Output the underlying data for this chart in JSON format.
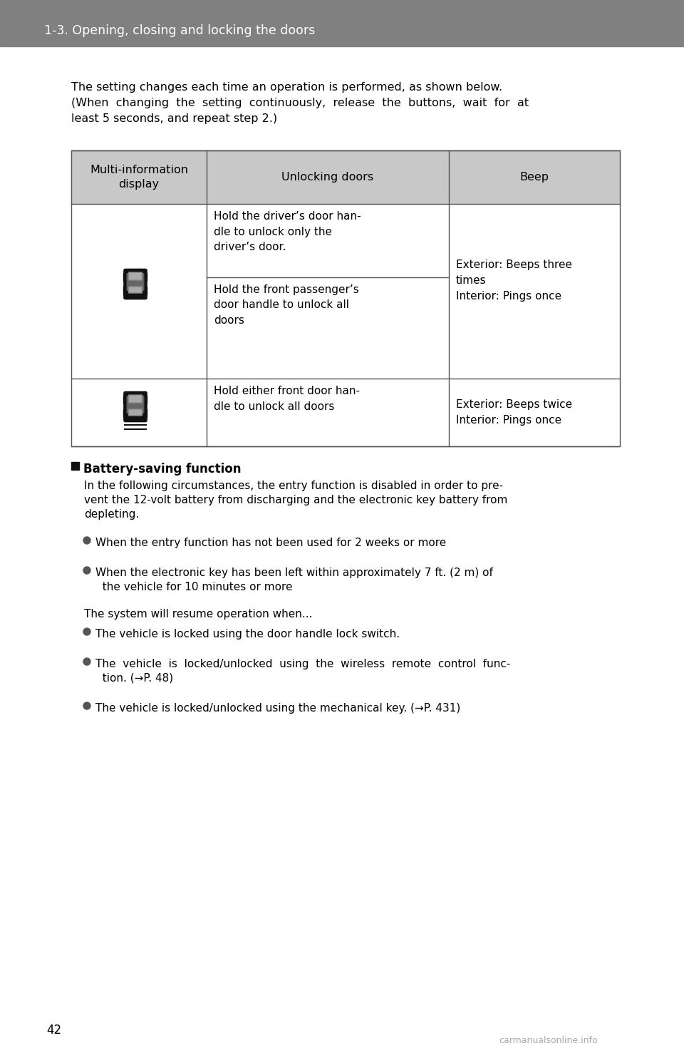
{
  "header_bg": "#808080",
  "header_text_color": "#ffffff",
  "header_title": "1-3. Opening, closing and locking the doors",
  "page_bg": "#ffffff",
  "page_number": "42",
  "intro_line1": "The setting changes each time an operation is performed, as shown below.",
  "intro_line2": "(When  changing  the  setting  continuously,  release  the  buttons,  wait  for  at",
  "intro_line3": "least 5 seconds, and repeat step 2.)",
  "table_header_bg": "#c8c8c8",
  "table_border_color": "#555555",
  "col_header0": "Multi-information\ndisplay",
  "col_header1": "Unlocking doors",
  "col_header2": "Beep",
  "row1_unlock_a": "Hold the driver’s door han-\ndle to unlock only the\ndriver’s door.",
  "row1_unlock_b": "Hold the front passenger’s\ndoor handle to unlock all\ndoors",
  "row1_beep": "Exterior: Beeps three\ntimes\nInterior: Pings once",
  "row2_unlock": "Hold either front door han-\ndle to unlock all doors",
  "row2_beep": "Exterior: Beeps twice\nInterior: Pings once",
  "section_title": "Battery-saving function",
  "section_body_line1": "In the following circumstances, the entry function is disabled in order to pre-",
  "section_body_line2": "vent the 12-volt battery from discharging and the electronic key battery from",
  "section_body_line3": "depleting.",
  "bullet_disable1": "When the entry function has not been used for 2 weeks or more",
  "bullet_disable2_l1": "When the electronic key has been left within approximately 7 ft. (2 m) of",
  "bullet_disable2_l2": "  the vehicle for 10 minutes or more",
  "resume_text": "The system will resume operation when...",
  "bullet_resume1": "The vehicle is locked using the door handle lock switch.",
  "bullet_resume2_l1": "The  vehicle  is  locked/unlocked  using  the  wireless  remote  control  func-",
  "bullet_resume2_l2": "  tion. (→P. 48)",
  "bullet_resume3": "The vehicle is locked/unlocked using the mechanical key. (→P. 431)",
  "watermark": "carmanualsonline.info"
}
